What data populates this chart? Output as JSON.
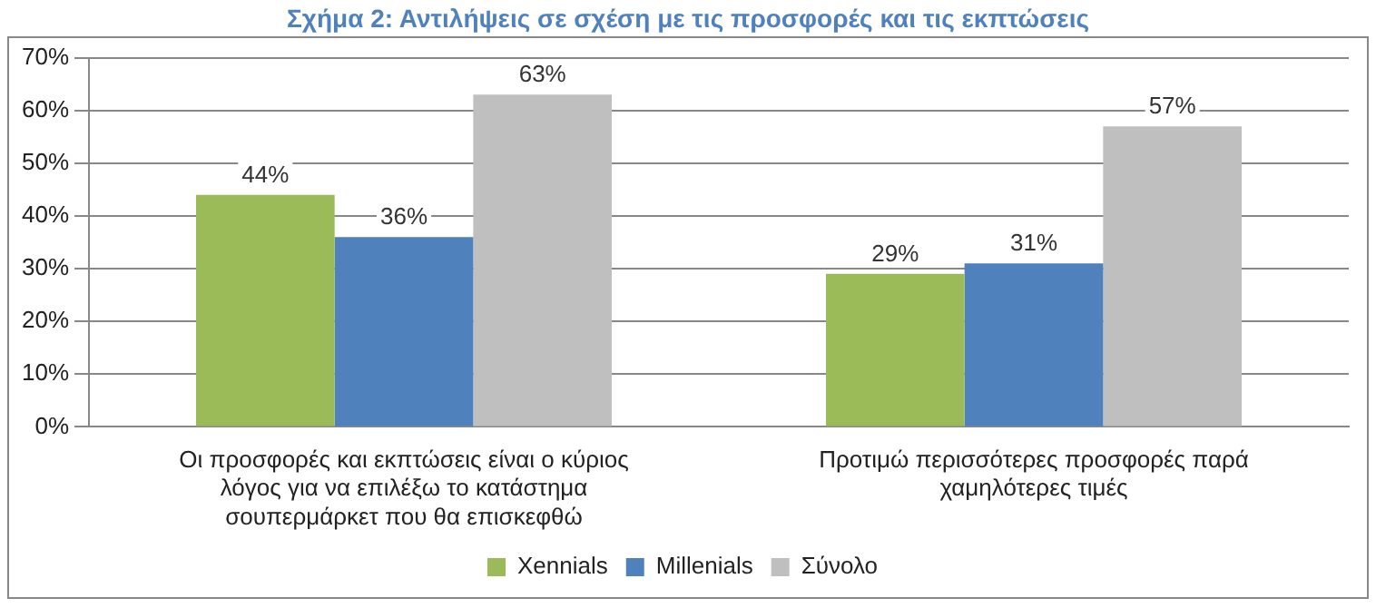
{
  "chart_data": {
    "type": "bar",
    "title": "Σχήμα 2: Αντιλήψεις σε σχέση με τις προσφορές και τις εκπτώσεις",
    "categories": [
      "Οι προσφορές και εκπτώσεις είναι ο κύριος λόγος για να επιλέξω το κατάστημα σουπερμάρκετ που θα επισκεφθώ",
      "Προτιμώ περισσότερες προσφορές παρά χαμηλότερες τιμές"
    ],
    "series": [
      {
        "name": "Xennials",
        "color": "#9bbb59",
        "values": [
          44,
          29
        ],
        "value_labels": [
          "44%",
          "29%"
        ]
      },
      {
        "name": "Millenials",
        "color": "#4f81bd",
        "values": [
          36,
          31
        ],
        "value_labels": [
          "36%",
          "31%"
        ]
      },
      {
        "name": "Σύνολο",
        "color": "#bfbfbf",
        "values": [
          63,
          57
        ],
        "value_labels": [
          "63%",
          "57%"
        ]
      }
    ],
    "ylim": [
      0,
      70
    ],
    "yticks": [
      {
        "value": 0,
        "label": "0%"
      },
      {
        "value": 10,
        "label": "10%"
      },
      {
        "value": 20,
        "label": "20%"
      },
      {
        "value": 30,
        "label": "30%"
      },
      {
        "value": 40,
        "label": "40%"
      },
      {
        "value": 50,
        "label": "50%"
      },
      {
        "value": 60,
        "label": "60%"
      },
      {
        "value": 70,
        "label": "70%"
      }
    ],
    "grid": "y",
    "legend": "bottom"
  }
}
